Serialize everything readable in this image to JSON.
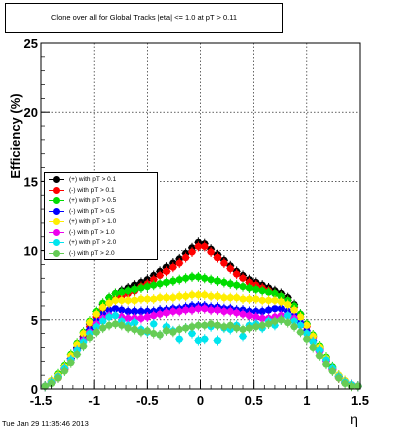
{
  "title": "Clone  over all for Global Tracks |eta| <= 1.0 at pT > 0.11",
  "timestamp": "Tue Jan 29 11:35:46 2013",
  "chart_data": {
    "type": "scatter",
    "xlabel": "η",
    "ylabel": "Efficiency (%)",
    "xlim": [
      -1.5,
      1.5
    ],
    "ylim": [
      0,
      25
    ],
    "xticks": [
      "-1.5",
      "-1",
      "-0.5",
      "0",
      "0.5",
      "1",
      "1.5"
    ],
    "yticks": [
      "0",
      "5",
      "10",
      "15",
      "20",
      "25"
    ],
    "grid": true,
    "legend_position": "left-middle",
    "x": [
      -1.46,
      -1.4,
      -1.34,
      -1.28,
      -1.22,
      -1.16,
      -1.1,
      -1.04,
      -0.98,
      -0.92,
      -0.86,
      -0.8,
      -0.74,
      -0.68,
      -0.62,
      -0.56,
      -0.5,
      -0.44,
      -0.38,
      -0.32,
      -0.26,
      -0.2,
      -0.14,
      -0.08,
      -0.02,
      0.04,
      0.1,
      0.16,
      0.22,
      0.28,
      0.34,
      0.4,
      0.46,
      0.52,
      0.58,
      0.64,
      0.7,
      0.76,
      0.82,
      0.88,
      0.94,
      1.0,
      1.06,
      1.12,
      1.18,
      1.24,
      1.3,
      1.36,
      1.42,
      1.48
    ],
    "series": [
      {
        "name": "(+) with pT > 0.1",
        "color": "#000000",
        "values": [
          0.2,
          0.5,
          0.9,
          1.5,
          2.2,
          3.0,
          3.8,
          4.7,
          5.4,
          6.1,
          6.6,
          6.9,
          7.1,
          7.3,
          7.5,
          7.7,
          7.9,
          8.2,
          8.5,
          8.8,
          9.1,
          9.4,
          9.8,
          10.2,
          10.6,
          10.5,
          10.1,
          9.7,
          9.3,
          8.9,
          8.5,
          8.2,
          7.9,
          7.7,
          7.5,
          7.3,
          7.1,
          6.9,
          6.6,
          6.1,
          5.4,
          4.7,
          3.8,
          3.0,
          2.2,
          1.5,
          0.9,
          0.5,
          0.3,
          0.2
        ]
      },
      {
        "name": "(-) with pT > 0.1",
        "color": "#ff0000",
        "values": [
          0.2,
          0.5,
          0.8,
          1.4,
          2.1,
          2.9,
          3.7,
          4.5,
          5.2,
          5.8,
          6.2,
          6.5,
          6.7,
          6.9,
          7.1,
          7.4,
          7.6,
          7.9,
          8.2,
          8.5,
          8.8,
          9.1,
          9.5,
          9.9,
          10.3,
          10.3,
          9.9,
          9.5,
          9.1,
          8.7,
          8.3,
          8.0,
          7.7,
          7.5,
          7.3,
          7.1,
          6.9,
          6.7,
          6.4,
          5.9,
          5.2,
          4.5,
          3.7,
          2.9,
          2.1,
          1.4,
          0.8,
          0.5,
          0.3,
          0.2
        ]
      },
      {
        "name": "(+) with pT > 0.5",
        "color": "#00dd00",
        "values": [
          0.2,
          0.6,
          1.1,
          1.7,
          2.5,
          3.3,
          4.1,
          4.9,
          5.6,
          6.2,
          6.6,
          6.9,
          7.0,
          7.1,
          7.2,
          7.3,
          7.4,
          7.5,
          7.6,
          7.7,
          7.8,
          7.9,
          8.0,
          8.1,
          8.1,
          8.0,
          7.9,
          7.8,
          7.7,
          7.6,
          7.5,
          7.4,
          7.3,
          7.2,
          7.1,
          7.0,
          6.9,
          6.7,
          6.4,
          6.0,
          5.4,
          4.7,
          3.9,
          3.1,
          2.3,
          1.6,
          1.0,
          0.6,
          0.3,
          0.2
        ]
      },
      {
        "name": "(-) with pT > 0.5",
        "color": "#0000ff",
        "values": [
          0.2,
          0.5,
          0.9,
          1.5,
          2.2,
          2.9,
          3.6,
          4.3,
          4.9,
          5.4,
          5.7,
          5.8,
          5.7,
          5.6,
          5.6,
          5.6,
          5.6,
          5.6,
          5.7,
          5.7,
          5.8,
          5.8,
          5.9,
          6.0,
          6.0,
          6.0,
          5.9,
          5.9,
          5.8,
          5.8,
          5.7,
          5.7,
          5.6,
          5.6,
          5.6,
          5.7,
          5.8,
          5.8,
          5.6,
          5.3,
          4.8,
          4.2,
          3.5,
          2.8,
          2.1,
          1.5,
          0.9,
          0.5,
          0.3,
          0.2
        ]
      },
      {
        "name": "(+) with pT > 1.0",
        "color": "#ffee00",
        "values": [
          0.2,
          0.6,
          1.0,
          1.6,
          2.4,
          3.2,
          4.0,
          4.8,
          5.4,
          5.9,
          6.2,
          6.4,
          6.4,
          6.4,
          6.4,
          6.5,
          6.5,
          6.5,
          6.6,
          6.6,
          6.6,
          6.7,
          6.7,
          6.8,
          6.8,
          6.8,
          6.7,
          6.7,
          6.6,
          6.6,
          6.6,
          6.5,
          6.5,
          6.5,
          6.4,
          6.4,
          6.4,
          6.3,
          6.1,
          5.7,
          5.2,
          4.6,
          3.8,
          3.0,
          2.2,
          1.5,
          1.0,
          0.6,
          0.3,
          0.2
        ]
      },
      {
        "name": "(-) with pT > 1.0",
        "color": "#ee00ee",
        "values": [
          0.2,
          0.5,
          0.9,
          1.5,
          2.1,
          2.8,
          3.5,
          4.1,
          4.7,
          5.1,
          5.3,
          5.3,
          5.2,
          5.1,
          5.1,
          5.1,
          5.2,
          5.3,
          5.4,
          5.5,
          5.6,
          5.6,
          5.7,
          5.7,
          5.8,
          5.8,
          5.7,
          5.7,
          5.6,
          5.6,
          5.5,
          5.4,
          5.3,
          5.2,
          5.1,
          5.1,
          5.2,
          5.3,
          5.3,
          5.1,
          4.6,
          4.0,
          3.4,
          2.7,
          2.0,
          1.4,
          0.9,
          0.5,
          0.3,
          0.2
        ]
      },
      {
        "name": "(+) with pT > 2.0",
        "color": "#00e5ee",
        "values": [
          0.2,
          0.5,
          0.9,
          1.5,
          2.1,
          2.8,
          3.4,
          4.0,
          4.5,
          4.9,
          5.2,
          5.3,
          4.9,
          4.6,
          4.8,
          4.3,
          4.1,
          4.7,
          3.9,
          4.5,
          4.2,
          3.6,
          4.4,
          4.0,
          3.5,
          3.6,
          4.5,
          3.5,
          4.4,
          4.3,
          4.6,
          3.8,
          4.6,
          4.7,
          4.4,
          4.9,
          4.6,
          5.0,
          5.3,
          4.9,
          4.6,
          4.0,
          3.4,
          2.8,
          2.1,
          1.5,
          0.9,
          0.5,
          0.3,
          0.2
        ]
      },
      {
        "name": "(-) with pT > 2.0",
        "color": "#66cc55",
        "values": [
          0.2,
          0.4,
          0.8,
          1.3,
          1.9,
          2.5,
          3.1,
          3.7,
          4.1,
          4.4,
          4.6,
          4.7,
          4.6,
          4.4,
          4.3,
          4.1,
          4.2,
          4.0,
          3.9,
          4.2,
          4.1,
          4.3,
          4.4,
          4.5,
          4.6,
          4.6,
          4.7,
          4.6,
          4.5,
          4.6,
          4.4,
          4.3,
          4.4,
          4.5,
          4.6,
          4.7,
          4.9,
          5.0,
          4.8,
          4.5,
          4.1,
          3.6,
          3.0,
          2.4,
          1.8,
          1.3,
          0.8,
          0.4,
          0.2,
          0.2
        ]
      }
    ]
  }
}
